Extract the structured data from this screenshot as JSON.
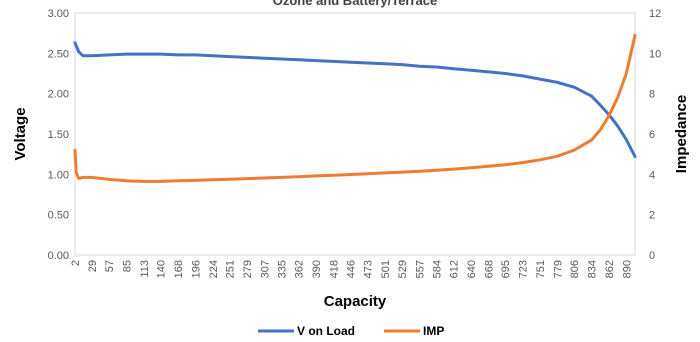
{
  "chart_data": {
    "type": "line",
    "title": "Ozone and Battery/Terrace",
    "xlabel": "Capacity",
    "ylabel": "Voltage",
    "y2label": "Impedance",
    "x_ticks": [
      "2",
      "29",
      "57",
      "85",
      "113",
      "140",
      "168",
      "196",
      "224",
      "251",
      "279",
      "307",
      "335",
      "362",
      "390",
      "418",
      "446",
      "473",
      "501",
      "529",
      "557",
      "584",
      "612",
      "640",
      "668",
      "695",
      "723",
      "751",
      "779",
      "806",
      "834",
      "862",
      "890"
    ],
    "xlim": [
      2,
      904
    ],
    "ylim": [
      0,
      3
    ],
    "y_ticks": [
      "0.00",
      "0.50",
      "1.00",
      "1.50",
      "2.00",
      "2.50",
      "3.00"
    ],
    "y2lim": [
      0,
      12
    ],
    "y2_ticks": [
      "0",
      "2",
      "4",
      "6",
      "8",
      "10",
      "12"
    ],
    "grid": false,
    "legend_position": "bottom",
    "series": [
      {
        "name": "V on Load",
        "axis": "left",
        "color": "#4472C4",
        "x": [
          2,
          8,
          15,
          29,
          57,
          85,
          113,
          140,
          168,
          196,
          224,
          251,
          279,
          307,
          335,
          362,
          390,
          418,
          446,
          473,
          501,
          529,
          557,
          584,
          612,
          640,
          668,
          695,
          723,
          751,
          779,
          806,
          834,
          848,
          862,
          876,
          890,
          904
        ],
        "values": [
          2.63,
          2.52,
          2.47,
          2.47,
          2.48,
          2.49,
          2.49,
          2.49,
          2.48,
          2.48,
          2.47,
          2.46,
          2.45,
          2.44,
          2.43,
          2.42,
          2.41,
          2.4,
          2.39,
          2.38,
          2.37,
          2.36,
          2.34,
          2.33,
          2.31,
          2.29,
          2.27,
          2.25,
          2.22,
          2.18,
          2.14,
          2.08,
          1.97,
          1.86,
          1.74,
          1.6,
          1.43,
          1.22
        ]
      },
      {
        "name": "IMP",
        "axis": "right",
        "color": "#ED7D31",
        "x": [
          2,
          4,
          8,
          15,
          29,
          57,
          85,
          113,
          140,
          168,
          196,
          224,
          251,
          279,
          307,
          335,
          362,
          390,
          418,
          446,
          473,
          501,
          529,
          557,
          584,
          612,
          640,
          668,
          695,
          723,
          751,
          779,
          806,
          834,
          848,
          862,
          876,
          890,
          904
        ],
        "values": [
          5.2,
          4.1,
          3.8,
          3.85,
          3.85,
          3.75,
          3.68,
          3.65,
          3.65,
          3.68,
          3.7,
          3.73,
          3.76,
          3.79,
          3.82,
          3.85,
          3.88,
          3.92,
          3.95,
          3.99,
          4.03,
          4.07,
          4.11,
          4.15,
          4.2,
          4.26,
          4.33,
          4.4,
          4.48,
          4.58,
          4.72,
          4.9,
          5.2,
          5.7,
          6.2,
          6.9,
          7.8,
          9.0,
          10.9
        ]
      }
    ]
  }
}
